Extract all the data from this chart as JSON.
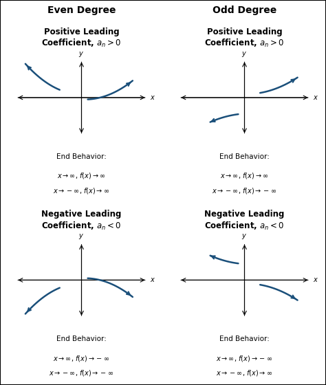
{
  "col_headers": [
    "Even Degree",
    "Odd Degree"
  ],
  "row1_titles": [
    "Positive Leading\nCoefficient, $a_n > 0$",
    "Positive Leading\nCoefficient, $a_n > 0$"
  ],
  "row2_titles": [
    "Negative Leading\nCoefficient, $a_n < 0$",
    "Negative Leading\nCoefficient, $a_n < 0$"
  ],
  "row1_left_beh": [
    "$x \\rightarrow \\infty$, $f(x) \\rightarrow \\infty$",
    "$x \\rightarrow -\\infty$, $f(x) \\rightarrow \\infty$"
  ],
  "row1_right_beh": [
    "$x \\rightarrow \\infty$, $f(x) \\rightarrow \\infty$",
    "$x \\rightarrow -\\infty$, $f(x) \\rightarrow -\\infty$"
  ],
  "row2_left_beh": [
    "$x \\rightarrow \\infty$, $f(x) \\rightarrow -\\infty$",
    "$x \\rightarrow -\\infty$, $f(x) \\rightarrow -\\infty$"
  ],
  "row2_right_beh": [
    "$x \\rightarrow \\infty$, $f(x) \\rightarrow -\\infty$",
    "$x \\rightarrow -\\infty$, $f(x) \\rightarrow \\infty$"
  ],
  "arrow_color": "#1a4f7a",
  "bg_color": "#ffffff",
  "text_color": "#000000",
  "header_fontsize": 10,
  "title_fontsize": 8.5,
  "behavior_fontsize": 7.0
}
